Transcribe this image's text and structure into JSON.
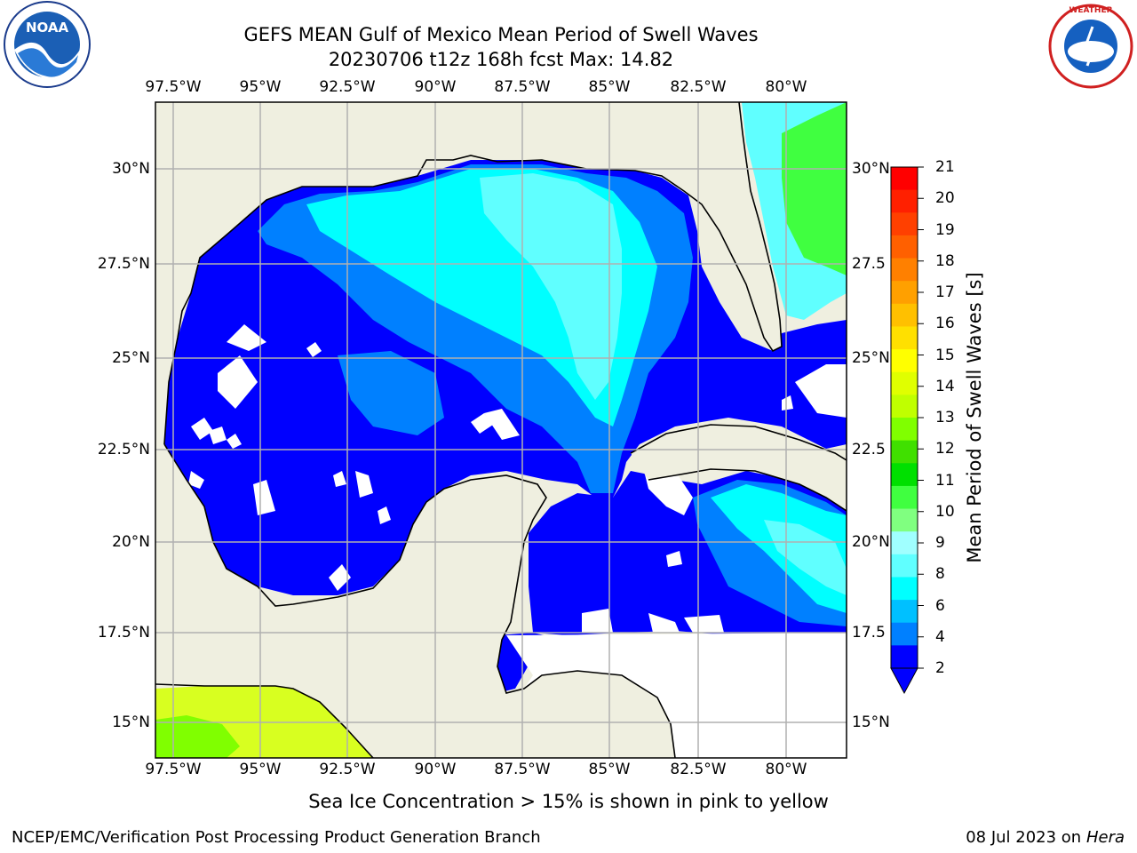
{
  "title_line1": "GEFS MEAN Gulf of Mexico Mean Period of Swell Waves",
  "title_line2": "20230706 t12z 168h fcst   Max: 14.82",
  "lon_labels": [
    "97.5°W",
    "95°W",
    "92.5°W",
    "90°W",
    "87.5°W",
    "85°W",
    "82.5°W",
    "80°W"
  ],
  "lat_labels_left": [
    "30°N",
    "27.5°N",
    "25°N",
    "22.5°N",
    "20°N",
    "17.5°N",
    "15°N"
  ],
  "lat_labels_right": [
    "30°N",
    "27.5",
    "25°N",
    "22.5",
    "20°N",
    "17.5",
    "15°N"
  ],
  "colorbar": {
    "label": "Mean Period of Swell Waves [s]",
    "ticks": [
      "21",
      "20",
      "19",
      "18",
      "17",
      "16",
      "15",
      "14",
      "13",
      "12",
      "11",
      "10",
      "9",
      "8",
      "6",
      "4",
      "2"
    ],
    "colors": [
      "#ff0000",
      "#ff2000",
      "#ff4000",
      "#ff6000",
      "#ff8000",
      "#ffa000",
      "#ffc000",
      "#ffe000",
      "#ffff00",
      "#e0ff00",
      "#c0ff00",
      "#80ff00",
      "#40e000",
      "#00e000",
      "#40ff40",
      "#80ff80",
      "#a0ffff",
      "#60ffff",
      "#00ffff",
      "#00c0ff",
      "#0080ff",
      "#0000ff"
    ]
  },
  "map_colors": {
    "land": "#efefe0",
    "ocean_low": "#0000ff",
    "ocean_mid": "#0080ff",
    "ocean_high": "#00ffff",
    "ocean_higher": "#60ffff",
    "ice_yellow": "#d8ff20",
    "ice_green": "#80ff00",
    "atlantic_green": "#40ff40"
  },
  "note": "Sea Ice Concentration > 15% is shown in pink to yellow",
  "credit": "NCEP/EMC/Verification Post Processing Product Generation Branch",
  "date_text": "08 Jul 2023 on ",
  "date_host": "Hera",
  "logos": {
    "left": "NOAA",
    "right": "NATIONAL WEATHER SERVICE"
  }
}
